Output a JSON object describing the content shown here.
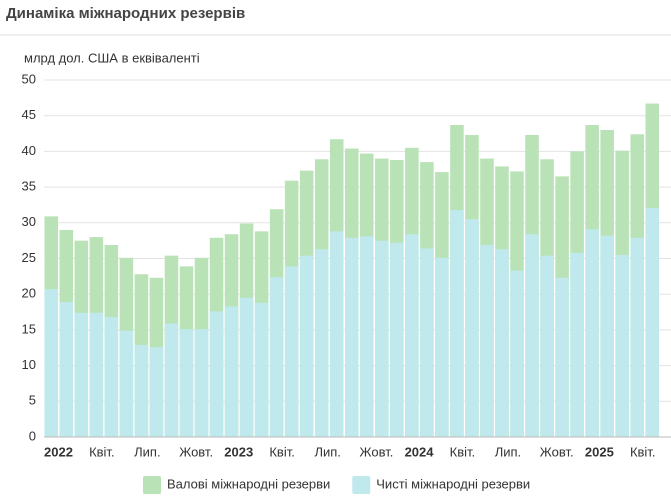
{
  "chart_data": {
    "type": "bar",
    "title": "Динаміка міжнародних резервів",
    "subtitle": "млрд дол. США в еквіваленті",
    "categories": [
      "2022",
      null,
      null,
      "Квіт.",
      null,
      null,
      "Лип.",
      null,
      null,
      "Жовт.",
      null,
      null,
      "2023",
      null,
      null,
      "Квіт.",
      null,
      null,
      "Лип.",
      null,
      null,
      "Жовт.",
      null,
      null,
      "2024",
      null,
      null,
      "Квіт.",
      null,
      null,
      "Лип.",
      null,
      null,
      "Жовт.",
      null,
      null,
      "2025",
      null,
      null,
      "Квіт.",
      null
    ],
    "series": [
      {
        "name": "Валові міжнародні резерви",
        "color": "#b9e2b6",
        "values": [
          30.9,
          29.0,
          27.5,
          28.0,
          26.9,
          25.1,
          22.8,
          22.3,
          25.4,
          23.9,
          25.1,
          27.9,
          28.4,
          29.9,
          28.8,
          31.9,
          35.9,
          37.3,
          38.9,
          41.7,
          40.4,
          39.7,
          39.0,
          38.8,
          40.5,
          38.5,
          37.1,
          43.7,
          42.3,
          39.0,
          37.9,
          37.2,
          42.3,
          38.9,
          36.5,
          40.0,
          43.7,
          43.0,
          40.1,
          42.4,
          46.7
        ]
      },
      {
        "name": "Чисті міжнародні резерви",
        "color": "#bfe9ec",
        "values": [
          20.7,
          18.9,
          17.4,
          17.4,
          16.8,
          14.9,
          12.9,
          12.6,
          15.9,
          15.1,
          15.1,
          17.6,
          18.3,
          19.5,
          18.8,
          22.4,
          23.9,
          25.4,
          26.3,
          28.8,
          27.9,
          28.1,
          27.5,
          27.2,
          28.4,
          26.4,
          25.1,
          31.8,
          30.5,
          26.9,
          26.3,
          23.3,
          28.4,
          25.4,
          22.3,
          25.8,
          29.1,
          28.2,
          25.5,
          27.9,
          32.1
        ]
      }
    ],
    "ylim": [
      0,
      50
    ],
    "yticks": [
      0,
      5,
      10,
      15,
      20,
      25,
      30,
      35,
      40,
      45,
      50
    ],
    "grid": true,
    "legend": "bottom"
  }
}
